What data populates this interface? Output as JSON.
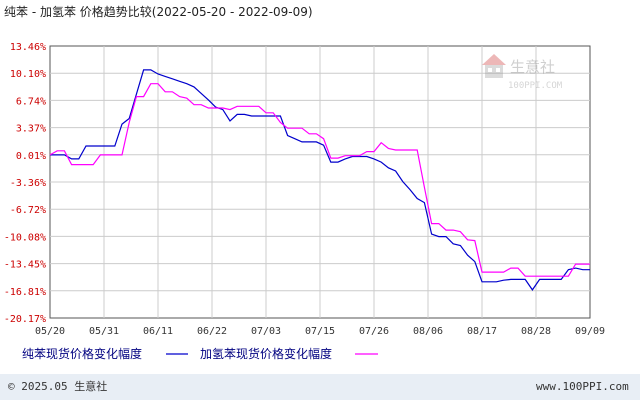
{
  "chart_data": {
    "type": "line",
    "title": "纯苯 - 加氢苯 价格趋势比较(2022-05-20 - 2022-09-09)",
    "y_tick_labels": [
      "13.46%",
      "10.10%",
      "6.74%",
      "3.37%",
      "0.01%",
      "-3.36%",
      "-6.72%",
      "-10.08%",
      "-13.45%",
      "-16.81%",
      "-20.17%"
    ],
    "ylim": [
      -20.17,
      13.46
    ],
    "x_tick_labels": [
      "05/20",
      "05/31",
      "06/11",
      "06/22",
      "07/03",
      "07/15",
      "07/26",
      "08/06",
      "08/17",
      "08/28",
      "09/09"
    ],
    "grid": true,
    "legend_position": "bottom",
    "series": [
      {
        "name": "纯苯现货价格变化幅度",
        "color": "#0000cc",
        "points": [
          [
            0,
            0.0
          ],
          [
            2,
            0.0
          ],
          [
            3,
            -0.5
          ],
          [
            4,
            -0.5
          ],
          [
            5,
            1.1
          ],
          [
            9,
            1.1
          ],
          [
            10,
            3.8
          ],
          [
            11,
            4.5
          ],
          [
            12,
            7.5
          ],
          [
            13,
            10.5
          ],
          [
            14,
            10.5
          ],
          [
            15,
            10.0
          ],
          [
            16,
            9.7
          ],
          [
            17,
            9.4
          ],
          [
            18,
            9.1
          ],
          [
            19,
            8.8
          ],
          [
            20,
            8.4
          ],
          [
            21,
            7.6
          ],
          [
            22,
            6.8
          ],
          [
            23,
            5.9
          ],
          [
            24,
            5.6
          ],
          [
            25,
            4.2
          ],
          [
            26,
            5.0
          ],
          [
            27,
            5.0
          ],
          [
            28,
            4.8
          ],
          [
            32,
            4.8
          ],
          [
            33,
            2.4
          ],
          [
            34,
            2.0
          ],
          [
            35,
            1.6
          ],
          [
            37,
            1.6
          ],
          [
            38,
            1.2
          ],
          [
            39,
            -0.9
          ],
          [
            40,
            -0.9
          ],
          [
            41,
            -0.5
          ],
          [
            42,
            -0.2
          ],
          [
            44,
            -0.2
          ],
          [
            45,
            -0.5
          ],
          [
            46,
            -0.9
          ],
          [
            47,
            -1.6
          ],
          [
            48,
            -2.0
          ],
          [
            49,
            -3.3
          ],
          [
            50,
            -4.3
          ],
          [
            51,
            -5.4
          ],
          [
            52,
            -5.9
          ],
          [
            53,
            -9.8
          ],
          [
            54,
            -10.1
          ],
          [
            55,
            -10.1
          ],
          [
            56,
            -11.0
          ],
          [
            57,
            -11.2
          ],
          [
            58,
            -12.4
          ],
          [
            59,
            -13.2
          ],
          [
            60,
            -15.7
          ],
          [
            61,
            -15.7
          ],
          [
            62,
            -15.7
          ],
          [
            63,
            -15.5
          ],
          [
            64,
            -15.4
          ],
          [
            66,
            -15.4
          ],
          [
            67,
            -16.7
          ],
          [
            68,
            -15.4
          ],
          [
            71,
            -15.4
          ],
          [
            72,
            -14.2
          ],
          [
            73,
            -14.0
          ],
          [
            74,
            -14.2
          ],
          [
            75,
            -14.2
          ]
        ]
      },
      {
        "name": "加氢苯现货价格变化幅度",
        "color": "#ff00ff",
        "points": [
          [
            0,
            0.0
          ],
          [
            1,
            0.5
          ],
          [
            2,
            0.5
          ],
          [
            3,
            -1.2
          ],
          [
            6,
            -1.2
          ],
          [
            7,
            0.0
          ],
          [
            10,
            0.0
          ],
          [
            11,
            4.0
          ],
          [
            12,
            7.2
          ],
          [
            13,
            7.2
          ],
          [
            14,
            8.8
          ],
          [
            15,
            8.8
          ],
          [
            16,
            7.8
          ],
          [
            17,
            7.8
          ],
          [
            18,
            7.2
          ],
          [
            19,
            7.0
          ],
          [
            20,
            6.2
          ],
          [
            21,
            6.2
          ],
          [
            22,
            5.8
          ],
          [
            24,
            5.8
          ],
          [
            25,
            5.6
          ],
          [
            26,
            6.0
          ],
          [
            29,
            6.0
          ],
          [
            30,
            5.2
          ],
          [
            31,
            5.2
          ],
          [
            32,
            4.0
          ],
          [
            33,
            3.3
          ],
          [
            35,
            3.3
          ],
          [
            36,
            2.6
          ],
          [
            37,
            2.6
          ],
          [
            38,
            2.0
          ],
          [
            39,
            -0.4
          ],
          [
            40,
            -0.4
          ],
          [
            41,
            -0.1
          ],
          [
            43,
            -0.1
          ],
          [
            44,
            0.4
          ],
          [
            45,
            0.4
          ],
          [
            46,
            1.5
          ],
          [
            47,
            0.8
          ],
          [
            48,
            0.6
          ],
          [
            50,
            0.6
          ],
          [
            51,
            0.6
          ],
          [
            52,
            -4.0
          ],
          [
            53,
            -8.5
          ],
          [
            54,
            -8.5
          ],
          [
            55,
            -9.3
          ],
          [
            56,
            -9.3
          ],
          [
            57,
            -9.5
          ],
          [
            58,
            -10.5
          ],
          [
            59,
            -10.6
          ],
          [
            60,
            -14.5
          ],
          [
            61,
            -14.5
          ],
          [
            62,
            -14.5
          ],
          [
            63,
            -14.5
          ],
          [
            64,
            -14.0
          ],
          [
            65,
            -14.0
          ],
          [
            66,
            -15.0
          ],
          [
            69,
            -15.0
          ],
          [
            72,
            -15.0
          ],
          [
            73,
            -13.5
          ],
          [
            75,
            -13.5
          ]
        ]
      }
    ]
  },
  "brand": {
    "watermark_name": "生意社",
    "watermark_url": "100PPI.COM"
  },
  "footer": {
    "copyright": "© 2025.05 生意社",
    "site": "www.100PPI.com"
  }
}
